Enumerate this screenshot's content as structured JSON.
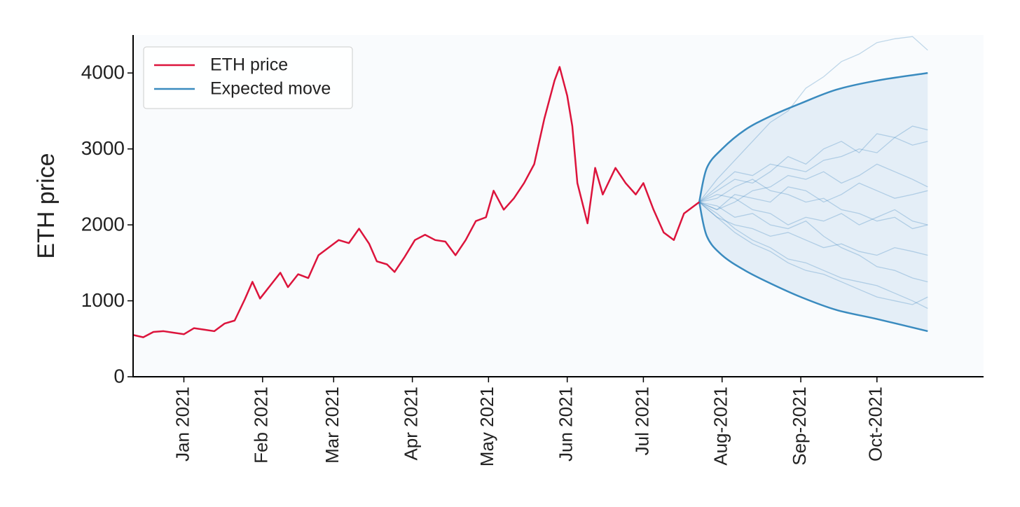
{
  "chart_data": {
    "type": "line",
    "ylabel": "ETH price",
    "xlim": [
      "2020-12-12",
      "2021-11-12"
    ],
    "ylim": [
      0,
      4500
    ],
    "yticks": [
      0,
      1000,
      2000,
      3000,
      4000
    ],
    "xticks": [
      {
        "value": "2021-01-01",
        "label": "Jan 2021"
      },
      {
        "value": "2021-02-01",
        "label": "Feb 2021"
      },
      {
        "value": "2021-03-01",
        "label": "Mar 2021"
      },
      {
        "value": "2021-04-01",
        "label": "Apr 2021"
      },
      {
        "value": "2021-05-01",
        "label": "May 2021"
      },
      {
        "value": "2021-06-01",
        "label": "Jun 2021"
      },
      {
        "value": "2021-07-01",
        "label": "Jul 2021"
      },
      {
        "value": "2021-08-01",
        "label": "Aug-2021"
      },
      {
        "value": "2021-09-01",
        "label": "Sep-2021"
      },
      {
        "value": "2021-10-01",
        "label": "Oct-2021"
      }
    ],
    "legend": "upper left",
    "series": [
      {
        "name": "ETH price",
        "color": "#dc143c",
        "x": [
          "2020-12-12",
          "2020-12-16",
          "2020-12-20",
          "2020-12-24",
          "2020-12-28",
          "2021-01-01",
          "2021-01-05",
          "2021-01-09",
          "2021-01-13",
          "2021-01-17",
          "2021-01-21",
          "2021-01-25",
          "2021-01-28",
          "2021-01-31",
          "2021-02-04",
          "2021-02-08",
          "2021-02-11",
          "2021-02-15",
          "2021-02-19",
          "2021-02-23",
          "2021-02-27",
          "2021-03-03",
          "2021-03-07",
          "2021-03-11",
          "2021-03-15",
          "2021-03-18",
          "2021-03-22",
          "2021-03-25",
          "2021-03-29",
          "2021-04-02",
          "2021-04-06",
          "2021-04-10",
          "2021-04-14",
          "2021-04-18",
          "2021-04-22",
          "2021-04-26",
          "2021-04-30",
          "2021-05-03",
          "2021-05-07",
          "2021-05-11",
          "2021-05-15",
          "2021-05-19",
          "2021-05-23",
          "2021-05-27",
          "2021-05-29",
          "2021-06-01",
          "2021-06-03",
          "2021-06-05",
          "2021-06-09",
          "2021-06-12",
          "2021-06-15",
          "2021-06-20",
          "2021-06-24",
          "2021-06-28",
          "2021-07-01",
          "2021-07-05",
          "2021-07-09",
          "2021-07-13",
          "2021-07-17",
          "2021-07-21",
          "2021-07-23"
        ],
        "values": [
          550,
          520,
          590,
          600,
          580,
          560,
          640,
          620,
          600,
          700,
          740,
          1020,
          1250,
          1030,
          1200,
          1370,
          1180,
          1350,
          1300,
          1600,
          1700,
          1800,
          1760,
          1950,
          1750,
          1520,
          1480,
          1380,
          1580,
          1800,
          1870,
          1800,
          1780,
          1600,
          1800,
          2050,
          2100,
          2450,
          2200,
          2350,
          2550,
          2800,
          3400,
          3900,
          4080,
          3700,
          3300,
          2550,
          2020,
          2750,
          2400,
          2750,
          2550,
          2400,
          2550,
          2200,
          1900,
          1800,
          2150,
          2250,
          2300
        ]
      },
      {
        "name": "Expected move",
        "color": "#3a8bbf",
        "x": [
          "2021-07-23",
          "2021-07-26",
          "2021-08-01",
          "2021-08-10",
          "2021-08-20",
          "2021-09-01",
          "2021-09-15",
          "2021-10-01",
          "2021-10-21"
        ],
        "upper": [
          2300,
          2750,
          3000,
          3250,
          3430,
          3600,
          3780,
          3900,
          4000
        ],
        "lower": [
          2300,
          1850,
          1600,
          1400,
          1230,
          1050,
          880,
          760,
          600
        ]
      }
    ],
    "simulations": {
      "color": "#2a7ab8",
      "x": [
        "2021-07-23",
        "2021-07-30",
        "2021-08-06",
        "2021-08-13",
        "2021-08-20",
        "2021-08-27",
        "2021-09-03",
        "2021-09-10",
        "2021-09-17",
        "2021-09-24",
        "2021-10-01",
        "2021-10-08",
        "2021-10-15",
        "2021-10-21"
      ],
      "paths": [
        [
          2300,
          2600,
          2850,
          3100,
          3350,
          3500,
          3800,
          3950,
          4150,
          4250,
          4400,
          4450,
          4480,
          4300
        ],
        [
          2300,
          2450,
          2600,
          2550,
          2700,
          2900,
          2800,
          3000,
          3100,
          2950,
          3200,
          3150,
          3050,
          3100
        ],
        [
          2300,
          2200,
          2400,
          2350,
          2300,
          2500,
          2450,
          2300,
          2400,
          2550,
          2450,
          2350,
          2400,
          2450
        ],
        [
          2300,
          2100,
          2000,
          1950,
          1850,
          1900,
          1800,
          1700,
          1750,
          1650,
          1600,
          1700,
          1650,
          1600
        ],
        [
          2300,
          2150,
          1950,
          1800,
          1700,
          1550,
          1500,
          1400,
          1300,
          1250,
          1200,
          1100,
          1000,
          900
        ],
        [
          2300,
          2400,
          2350,
          2200,
          2150,
          2000,
          2100,
          2050,
          2150,
          2000,
          2100,
          2200,
          2050,
          2000
        ],
        [
          2300,
          2500,
          2700,
          2650,
          2800,
          2750,
          2700,
          2850,
          2900,
          3000,
          2950,
          3150,
          3300,
          3250
        ],
        [
          2300,
          2250,
          2100,
          2150,
          2000,
          1950,
          2050,
          1850,
          1700,
          1600,
          1450,
          1400,
          1300,
          1250
        ],
        [
          2300,
          2350,
          2500,
          2600,
          2450,
          2400,
          2300,
          2350,
          2200,
          2150,
          2050,
          2100,
          1950,
          2000
        ],
        [
          2300,
          2200,
          2300,
          2450,
          2500,
          2650,
          2600,
          2700,
          2550,
          2650,
          2800,
          2700,
          2600,
          2500
        ],
        [
          2300,
          2100,
          1900,
          1750,
          1650,
          1500,
          1400,
          1350,
          1250,
          1150,
          1050,
          1000,
          950,
          1050
        ]
      ]
    }
  }
}
